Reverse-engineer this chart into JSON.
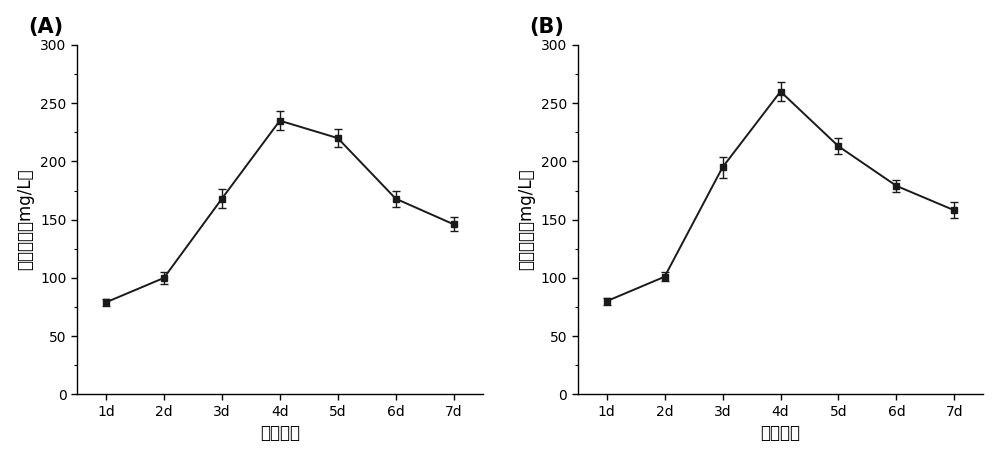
{
  "panel_A": {
    "label": "(A)",
    "x_labels": [
      "1d",
      "2d",
      "3d",
      "4d",
      "5d",
      "6d",
      "7d"
    ],
    "y_values": [
      79,
      100,
      168,
      235,
      220,
      168,
      146
    ],
    "y_errors": [
      3,
      5,
      8,
      8,
      8,
      7,
      6
    ],
    "xlabel": "表达时间",
    "ylabel": "蛋白含量（mg/L）",
    "ylim": [
      0,
      300
    ],
    "yticks": [
      0,
      50,
      100,
      150,
      200,
      250,
      300
    ]
  },
  "panel_B": {
    "label": "(B)",
    "x_labels": [
      "1d",
      "2d",
      "3d",
      "4d",
      "5d",
      "6d",
      "7d"
    ],
    "y_values": [
      80,
      101,
      195,
      260,
      213,
      179,
      158
    ],
    "y_errors": [
      3,
      4,
      9,
      8,
      7,
      5,
      7
    ],
    "xlabel": "表达时间",
    "ylabel": "蛋白含量（mg/L）",
    "ylim": [
      0,
      300
    ],
    "yticks": [
      0,
      50,
      100,
      150,
      200,
      250,
      300
    ]
  },
  "line_color": "#1a1a1a",
  "marker": "s",
  "marker_size": 5,
  "marker_color": "#1a1a1a",
  "linewidth": 1.4,
  "capsize": 3,
  "elinewidth": 1.0,
  "background_color": "#ffffff",
  "label_fontsize": 12,
  "tick_fontsize": 10,
  "panel_label_fontsize": 15,
  "panel_label_fontweight": "bold"
}
